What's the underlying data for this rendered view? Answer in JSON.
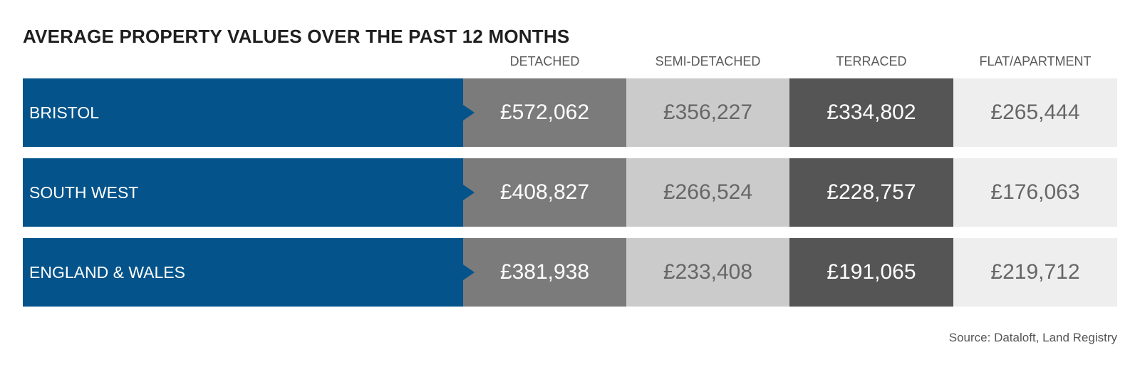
{
  "title": "AVERAGE PROPERTY VALUES OVER THE PAST 12 MONTHS",
  "source": "Source: Dataloft, Land Registry",
  "colors": {
    "label_band": "#04538a",
    "detached": "#7b7b7b",
    "semi_detached": "#cbcbcb",
    "terraced": "#555555",
    "flat_apartment": "#eeeeee"
  },
  "chart_data": {
    "type": "table",
    "title": "AVERAGE PROPERTY VALUES OVER THE PAST 12 MONTHS",
    "columns": [
      "DETACHED",
      "SEMI-DETACHED",
      "TERRACED",
      "FLAT/APARTMENT"
    ],
    "rows": [
      {
        "label": "BRISTOL",
        "values": [
          "£572,062",
          "£356,227",
          "£334,802",
          "£265,444"
        ]
      },
      {
        "label": "SOUTH WEST",
        "values": [
          "£408,827",
          "£266,524",
          "£228,757",
          "£176,063"
        ]
      },
      {
        "label": "ENGLAND & WALES",
        "values": [
          "£381,938",
          "£233,408",
          "£191,065",
          "£219,712"
        ]
      }
    ]
  }
}
